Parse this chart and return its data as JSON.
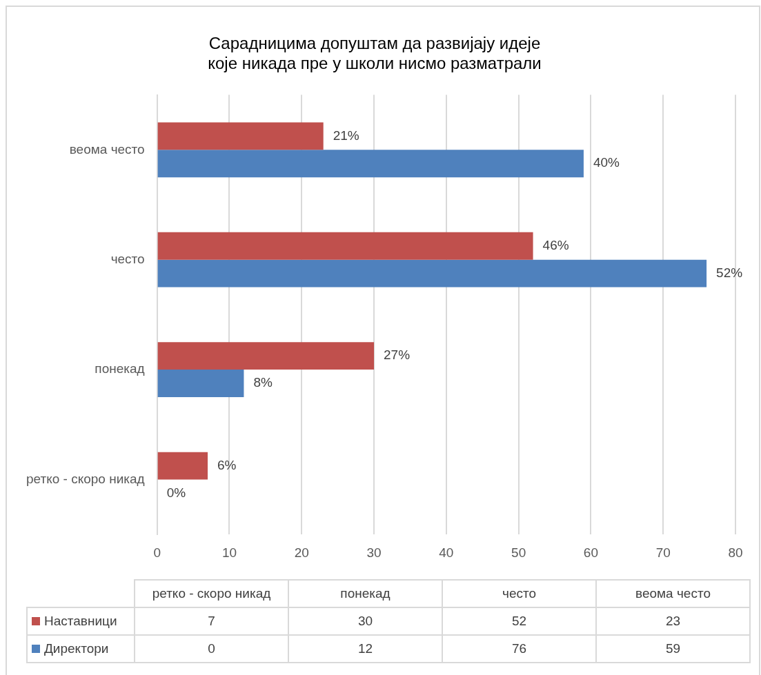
{
  "chart_data": [
    {
      "type": "bar",
      "orientation": "horizontal",
      "title": "Сарадницима допуштам да развијају идеје\nкоје никада пре у школи нисмо разматрали",
      "categories": [
        "веома често",
        "често",
        "понекад",
        "ретко - скоро никад"
      ],
      "series": [
        {
          "color": "#c0504d",
          "values": [
            23,
            52,
            30,
            7
          ]
        },
        {
          "color": "#4f81bd",
          "values": [
            59,
            76,
            12,
            0
          ]
        }
      ],
      "annotations": [
        {
          "text": "21%",
          "x": 23,
          "y": "веома често"
        },
        {
          "text": "40%",
          "x": 59,
          "y": "веома често"
        },
        {
          "text": "46%",
          "x": 52,
          "y": "често"
        },
        {
          "text": "52%",
          "x": 76,
          "y": "често"
        },
        {
          "text": "27%",
          "x": 30,
          "y": "понекад"
        },
        {
          "text": "8%",
          "x": 12,
          "y": "понекад"
        },
        {
          "text": "6%",
          "x": 7,
          "y": "ретко - скоро никад"
        },
        {
          "text": "0%",
          "x": 0,
          "y": "ретко - скоро никад"
        }
      ],
      "xlim": [
        0,
        80
      ],
      "xticks": [
        0,
        10,
        20,
        30,
        40,
        50,
        60,
        70,
        80
      ],
      "grid": "x"
    },
    {
      "type": "other",
      "categories": [
        "ретко - скоро никад",
        "понекад",
        "често",
        "веома често"
      ],
      "series": [
        {
          "name": "Наставници",
          "color": "#c0504d",
          "values": [
            7,
            30,
            52,
            23
          ],
          "value_labels": [
            "7",
            "30",
            "52",
            "23"
          ]
        },
        {
          "name": "Директори",
          "color": "#4f81bd",
          "values": [
            0,
            12,
            76,
            59
          ],
          "value_labels": [
            "0",
            "12",
            "76",
            "59"
          ]
        }
      ],
      "data_labels": true,
      "legend": "left"
    }
  ]
}
